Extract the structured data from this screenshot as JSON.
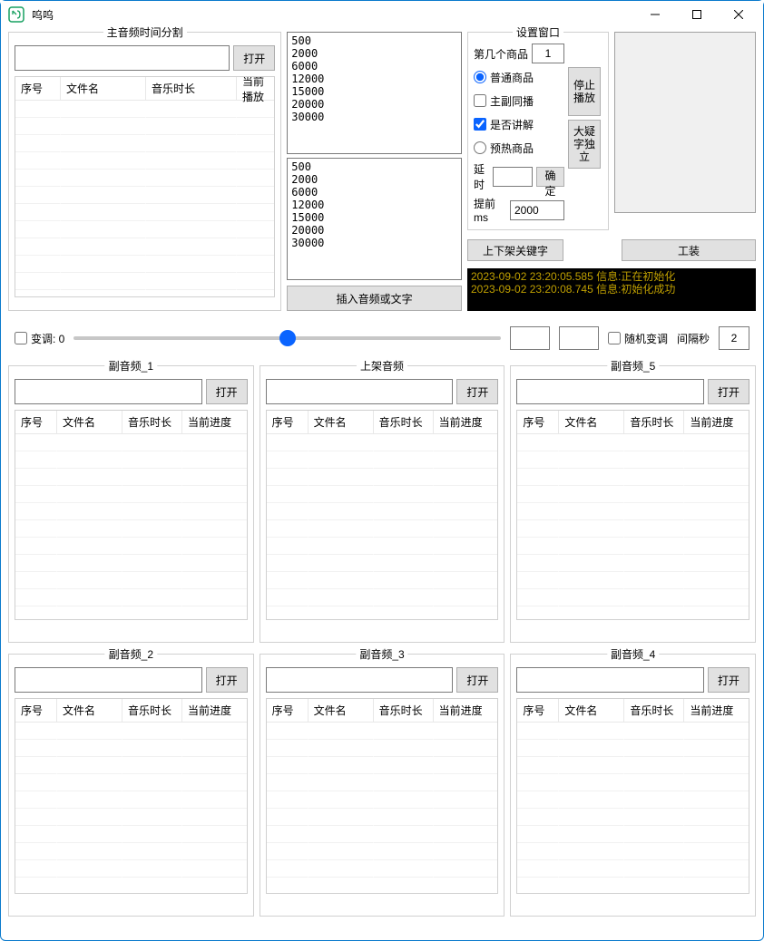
{
  "window": {
    "title": "呜呜"
  },
  "main_audio": {
    "group_label": "主音频时间分割",
    "open": "打开",
    "columns": [
      "序号",
      "文件名",
      "音乐时长",
      "当前播放"
    ]
  },
  "list1": "500\n2000\n6000\n12000\n15000\n20000\n30000",
  "list2": "500\n2000\n6000\n12000\n15000\n20000\n30000",
  "insert_btn": "插入音频或文字",
  "settings": {
    "group_label": "设置窗口",
    "item_index_label": "第几个商品",
    "item_index_value": "1",
    "radio_normal": "普通商品",
    "check_main_sub": "主副同播",
    "check_explain": "是否讲解",
    "radio_preheat": "预热商品",
    "btn_stop_play": "停止\n播放",
    "btn_big_font": "大疑字独立",
    "delay_label": "延时",
    "confirm": "确定",
    "advance_label": "提前ms",
    "advance_value": "2000",
    "key_char_label": "上下架关键字",
    "tool_btn": "工装"
  },
  "log": [
    "2023-09-02 23:20:05.585 信息:正在初始化",
    "2023-09-02 23:20:08.745 信息:初始化成功"
  ],
  "slider": {
    "pitch_label": "变调: 0",
    "random_pitch": "随机变调",
    "interval_label": "间隔秒",
    "interval_value": "2"
  },
  "panels": {
    "open": "打开",
    "columns": [
      "序号",
      "文件名",
      "音乐时长",
      "当前进度"
    ],
    "p1": "副音频_1",
    "p2": "上架音频",
    "p3": "副音频_5",
    "p4": "副音频_2",
    "p5": "副音频_3",
    "p6": "副音频_4"
  }
}
